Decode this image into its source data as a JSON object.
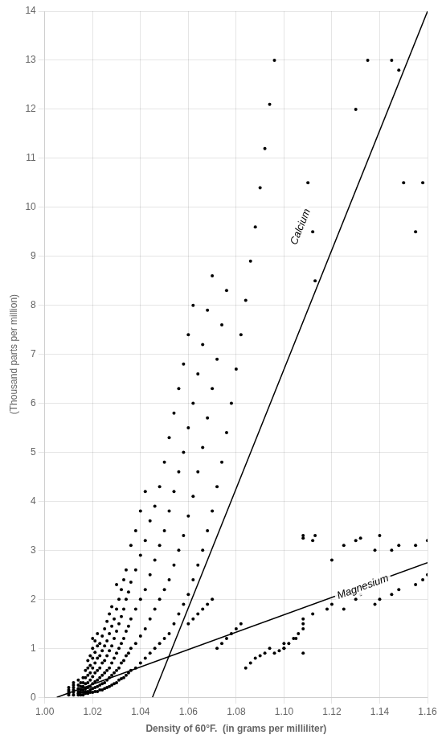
{
  "chart_data": {
    "type": "scatter",
    "xlabel": "Density of 60°F.  (in grams per milliliter)",
    "ylabel": "(Thousand parts per million)",
    "xlim": [
      1.0,
      1.16
    ],
    "ylim": [
      0,
      14
    ],
    "xticks": [
      {
        "value": 1.0,
        "label": "1.00"
      },
      1.02,
      1.04,
      1.06,
      1.08,
      {
        "value": 1.1,
        "label": "1.10"
      },
      1.12,
      1.14,
      1.16
    ],
    "yticks": [
      0,
      1,
      2,
      3,
      4,
      5,
      6,
      7,
      8,
      9,
      10,
      11,
      12,
      13,
      14
    ],
    "grid": true,
    "series": [
      {
        "type": "scatter",
        "color": "#000000",
        "marker": "circle",
        "x": [
          1.01,
          1.01,
          1.01,
          1.01,
          1.01,
          1.012,
          1.012,
          1.012,
          1.012,
          1.012,
          1.012,
          1.014,
          1.014,
          1.014,
          1.014,
          1.014,
          1.014,
          1.015,
          1.015,
          1.015,
          1.015,
          1.015,
          1.016,
          1.016,
          1.016,
          1.016,
          1.016,
          1.016,
          1.017,
          1.017,
          1.017,
          1.017,
          1.017,
          1.017,
          1.018,
          1.018,
          1.018,
          1.018,
          1.018,
          1.018,
          1.018,
          1.019,
          1.019,
          1.019,
          1.019,
          1.019,
          1.019,
          1.019,
          1.02,
          1.02,
          1.02,
          1.02,
          1.02,
          1.02,
          1.02,
          1.02,
          1.021,
          1.021,
          1.021,
          1.021,
          1.021,
          1.021,
          1.021,
          1.022,
          1.022,
          1.022,
          1.022,
          1.022,
          1.022,
          1.022,
          1.023,
          1.023,
          1.023,
          1.023,
          1.023,
          1.023,
          1.024,
          1.024,
          1.024,
          1.024,
          1.024,
          1.024,
          1.025,
          1.025,
          1.025,
          1.025,
          1.025,
          1.025,
          1.026,
          1.026,
          1.026,
          1.026,
          1.026,
          1.026,
          1.027,
          1.027,
          1.027,
          1.027,
          1.027,
          1.027,
          1.028,
          1.028,
          1.028,
          1.028,
          1.028,
          1.028,
          1.029,
          1.029,
          1.029,
          1.029,
          1.029,
          1.03,
          1.03,
          1.03,
          1.03,
          1.03,
          1.03,
          1.031,
          1.031,
          1.031,
          1.031,
          1.031,
          1.032,
          1.032,
          1.032,
          1.032,
          1.032,
          1.033,
          1.033,
          1.033,
          1.033,
          1.033,
          1.034,
          1.034,
          1.034,
          1.034,
          1.034,
          1.035,
          1.035,
          1.035,
          1.035,
          1.036,
          1.036,
          1.036,
          1.036,
          1.036,
          1.038,
          1.038,
          1.038,
          1.038,
          1.038,
          1.04,
          1.04,
          1.04,
          1.04,
          1.04,
          1.042,
          1.042,
          1.042,
          1.042,
          1.042,
          1.044,
          1.044,
          1.044,
          1.044,
          1.046,
          1.046,
          1.046,
          1.046,
          1.048,
          1.048,
          1.048,
          1.048,
          1.05,
          1.05,
          1.05,
          1.05,
          1.052,
          1.052,
          1.052,
          1.052,
          1.054,
          1.054,
          1.054,
          1.054,
          1.056,
          1.056,
          1.056,
          1.056,
          1.058,
          1.058,
          1.058,
          1.058,
          1.06,
          1.06,
          1.06,
          1.06,
          1.062,
          1.062,
          1.062,
          1.062,
          1.064,
          1.064,
          1.064,
          1.066,
          1.066,
          1.066,
          1.068,
          1.068,
          1.068,
          1.07,
          1.07,
          1.07,
          1.072,
          1.072,
          1.074,
          1.074,
          1.076,
          1.076,
          1.078,
          1.08,
          1.082,
          1.084,
          1.086,
          1.088,
          1.09,
          1.092,
          1.094,
          1.096,
          1.11,
          1.112,
          1.113,
          1.13,
          1.135,
          1.145,
          1.148,
          1.15,
          1.155,
          1.158,
          1.108,
          1.108,
          1.112,
          1.113,
          1.12,
          1.125,
          1.13,
          1.132,
          1.138,
          1.14,
          1.145,
          1.148,
          1.155,
          1.16,
          1.108,
          1.108,
          1.112,
          1.118,
          1.12,
          1.125,
          1.13,
          1.132,
          1.138,
          1.14,
          1.145,
          1.148,
          1.155,
          1.158,
          1.16,
          1.1,
          1.1,
          1.102,
          1.104,
          1.105,
          1.106,
          1.108,
          1.108,
          1.06,
          1.062,
          1.064,
          1.066,
          1.068,
          1.07,
          1.072,
          1.074,
          1.076,
          1.078,
          1.08,
          1.082,
          1.084,
          1.086,
          1.088,
          1.09,
          1.092,
          1.094,
          1.096,
          1.098,
          1.1
        ],
        "values": [
          0.05,
          0.08,
          0.12,
          0.15,
          0.2,
          0.05,
          0.1,
          0.15,
          0.2,
          0.25,
          0.3,
          0.05,
          0.08,
          0.12,
          0.18,
          0.25,
          0.35,
          0.05,
          0.1,
          0.15,
          0.22,
          0.3,
          0.05,
          0.1,
          0.15,
          0.22,
          0.3,
          0.4,
          0.08,
          0.12,
          0.18,
          0.28,
          0.4,
          0.55,
          0.08,
          0.12,
          0.2,
          0.3,
          0.45,
          0.6,
          0.75,
          0.1,
          0.15,
          0.22,
          0.35,
          0.5,
          0.65,
          0.85,
          0.1,
          0.18,
          0.28,
          0.42,
          0.6,
          0.8,
          1.0,
          1.2,
          0.12,
          0.2,
          0.32,
          0.5,
          0.7,
          0.92,
          1.15,
          0.12,
          0.22,
          0.35,
          0.55,
          0.8,
          1.05,
          1.3,
          0.15,
          0.25,
          0.4,
          0.6,
          0.85,
          1.1,
          0.15,
          0.28,
          0.45,
          0.7,
          0.95,
          1.25,
          0.18,
          0.3,
          0.5,
          0.75,
          1.05,
          1.4,
          0.2,
          0.35,
          0.55,
          0.85,
          1.15,
          1.55,
          0.22,
          0.4,
          0.6,
          0.95,
          1.3,
          1.7,
          0.25,
          0.45,
          0.7,
          1.05,
          1.45,
          1.85,
          0.28,
          0.5,
          0.8,
          1.2,
          1.6,
          0.3,
          0.55,
          0.9,
          1.35,
          1.8,
          2.3,
          0.35,
          0.6,
          1.0,
          1.5,
          2.0,
          0.38,
          0.7,
          1.1,
          1.65,
          2.2,
          0.4,
          0.75,
          1.2,
          1.8,
          2.4,
          0.45,
          0.85,
          1.35,
          2.0,
          2.6,
          0.5,
          0.9,
          1.45,
          2.15,
          0.55,
          1.0,
          1.6,
          2.35,
          3.1,
          0.6,
          1.1,
          1.8,
          2.6,
          3.4,
          0.7,
          1.25,
          2.0,
          2.9,
          3.8,
          0.8,
          1.4,
          2.2,
          3.2,
          4.2,
          0.9,
          1.6,
          2.5,
          3.6,
          1.0,
          1.8,
          2.8,
          3.9,
          1.1,
          2.0,
          3.1,
          4.3,
          1.2,
          2.2,
          3.4,
          4.8,
          1.3,
          2.4,
          3.8,
          5.3,
          1.5,
          2.7,
          4.2,
          5.8,
          1.7,
          3.0,
          4.6,
          6.3,
          1.9,
          3.3,
          5.0,
          6.8,
          2.1,
          3.7,
          5.5,
          7.4,
          2.4,
          4.1,
          6.0,
          8.0,
          2.7,
          4.6,
          6.6,
          3.0,
          5.1,
          7.2,
          3.4,
          5.7,
          7.9,
          3.8,
          6.3,
          8.6,
          4.3,
          6.9,
          4.8,
          7.6,
          5.4,
          8.3,
          6.0,
          6.7,
          7.4,
          8.1,
          8.9,
          9.6,
          10.4,
          11.2,
          12.1,
          13.0,
          10.5,
          9.5,
          8.5,
          12.0,
          13.0,
          13.0,
          12.8,
          10.5,
          9.5,
          10.5,
          3.25,
          3.3,
          3.2,
          3.3,
          2.8,
          3.1,
          3.2,
          3.25,
          3.0,
          3.3,
          3.0,
          3.1,
          3.1,
          3.2,
          1.5,
          1.6,
          1.7,
          1.8,
          1.9,
          1.8,
          2.0,
          2.1,
          1.9,
          2.0,
          2.1,
          2.2,
          2.3,
          2.4,
          2.5,
          1.0,
          1.1,
          1.1,
          1.2,
          1.2,
          1.3,
          1.4,
          0.9,
          1.5,
          1.6,
          1.7,
          1.8,
          1.9,
          2.0,
          1.0,
          1.1,
          1.2,
          1.3,
          1.4,
          1.5,
          0.6,
          0.7,
          0.8,
          0.85,
          0.9,
          1.0,
          0.9,
          0.95,
          1.0
        ]
      },
      {
        "type": "line",
        "color": "#000000",
        "line_style": "solid",
        "x": [
          1.045,
          1.16
        ],
        "values": [
          0.0,
          14.0
        ]
      },
      {
        "type": "line",
        "color": "#000000",
        "line_style": "solid",
        "x": [
          1.005,
          1.16
        ],
        "values": [
          0.0,
          2.75
        ]
      }
    ],
    "annotations": [
      {
        "text": "Calcium",
        "x": 1.107,
        "y": 9.6
      },
      {
        "text": "Magnesium",
        "x": 1.133,
        "y": 2.25
      }
    ]
  }
}
